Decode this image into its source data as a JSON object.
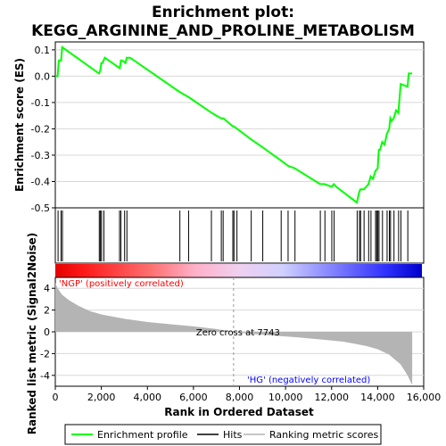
{
  "chart_data": [
    {
      "type": "line",
      "title_line1": "Enrichment plot:",
      "title_line2": "KEGG_ARGININE_AND_PROLINE_METABOLISM",
      "ylabel": "Enrichment score (ES)",
      "ylim": [
        -0.5,
        0.13
      ],
      "yticks": [
        0.1,
        0.0,
        -0.1,
        -0.2,
        -0.3,
        -0.4,
        -0.5
      ],
      "ytick_labels": [
        "0.1",
        "0.0",
        "-0.1",
        "-0.2",
        "-0.3",
        "-0.4",
        "-0.5"
      ],
      "xlim": [
        0,
        16000
      ],
      "series": [
        {
          "name": "Enrichment profile",
          "color": "#00ff00",
          "x": [
            0,
            100,
            150,
            250,
            300,
            1900,
            1950,
            2000,
            2050,
            2150,
            2800,
            2850,
            2900,
            3050,
            3100,
            3200,
            3250,
            5400,
            5800,
            6800,
            7200,
            7300,
            7700,
            7750,
            7900,
            8500,
            9000,
            9800,
            10100,
            10400,
            11500,
            11700,
            12000,
            12100,
            12200,
            13100,
            13200,
            13250,
            13400,
            13600,
            13700,
            13800,
            13900,
            14000,
            14050,
            14100,
            14200,
            14300,
            14400,
            14500,
            14550,
            14600,
            14700,
            14800,
            14900,
            15000,
            15300,
            15350,
            15500
          ],
          "y": [
            0.0,
            0.0,
            0.06,
            0.06,
            0.11,
            0.01,
            0.02,
            0.05,
            0.05,
            0.07,
            0.03,
            0.06,
            0.06,
            0.05,
            0.07,
            0.07,
            0.07,
            -0.06,
            -0.08,
            -0.14,
            -0.16,
            -0.16,
            -0.19,
            -0.19,
            -0.2,
            -0.24,
            -0.27,
            -0.32,
            -0.34,
            -0.35,
            -0.41,
            -0.41,
            -0.42,
            -0.41,
            -0.42,
            -0.48,
            -0.44,
            -0.43,
            -0.43,
            -0.41,
            -0.38,
            -0.39,
            -0.36,
            -0.35,
            -0.28,
            -0.28,
            -0.25,
            -0.26,
            -0.22,
            -0.2,
            -0.16,
            -0.17,
            -0.16,
            -0.13,
            -0.14,
            -0.03,
            -0.04,
            0.01,
            0.01
          ]
        }
      ]
    },
    {
      "type": "hits",
      "hits": [
        120,
        250,
        310,
        1910,
        1960,
        2010,
        2110,
        2790,
        2850,
        3010,
        3110,
        5410,
        5790,
        6780,
        7210,
        7290,
        7710,
        7760,
        7890,
        8510,
        9010,
        9810,
        10110,
        10410,
        11510,
        11710,
        12010,
        12110,
        13110,
        13210,
        13260,
        13410,
        13610,
        13710,
        13910,
        13960,
        14010,
        14060,
        14210,
        14410,
        14510,
        14560,
        14710,
        14910,
        15010,
        15310
      ]
    },
    {
      "type": "area",
      "ylabel": "Ranked list metric (Signal2Noise)",
      "xlabel": "Rank in Ordered Dataset",
      "ylim": [
        -5,
        5
      ],
      "yticks": [
        4,
        2,
        0,
        -2,
        -4
      ],
      "ytick_labels": [
        "4",
        "2",
        "0",
        "-2",
        "-4"
      ],
      "xlim": [
        0,
        16000
      ],
      "xticks": [
        0,
        2000,
        4000,
        6000,
        8000,
        10000,
        12000,
        14000,
        16000
      ],
      "xtick_labels": [
        "0",
        "2,000",
        "4,000",
        "6,000",
        "8,000",
        "10,000",
        "12,000",
        "14,000",
        "16,000"
      ],
      "x": [
        0,
        100,
        300,
        600,
        1000,
        1500,
        2000,
        3000,
        4000,
        5000,
        6000,
        7000,
        7743,
        8500,
        9500,
        10500,
        11500,
        12500,
        13000,
        13500,
        14000,
        14500,
        15000,
        15300,
        15500
      ],
      "y": [
        4.5,
        4.0,
        3.4,
        2.9,
        2.4,
        1.9,
        1.6,
        1.2,
        0.9,
        0.7,
        0.5,
        0.25,
        0.0,
        -0.2,
        -0.35,
        -0.5,
        -0.7,
        -0.9,
        -1.1,
        -1.3,
        -1.6,
        -2.1,
        -3.0,
        -4.0,
        -4.9
      ],
      "fill_color": "#b4b4b4",
      "zero_cross_label": "Zero cross at 7743",
      "zero_cross_x": 7743,
      "pos_label": "'NGP' (positively correlated)",
      "neg_label": "'HG' (negatively correlated)",
      "pos_color": "#ff0000",
      "neg_color": "#0000ff"
    }
  ],
  "legend": {
    "items": [
      {
        "label": "Enrichment profile",
        "color": "#00ff00"
      },
      {
        "label": "Hits",
        "color": "#000000"
      },
      {
        "label": "Ranking metric scores",
        "color": "#b4b4b4"
      }
    ]
  }
}
